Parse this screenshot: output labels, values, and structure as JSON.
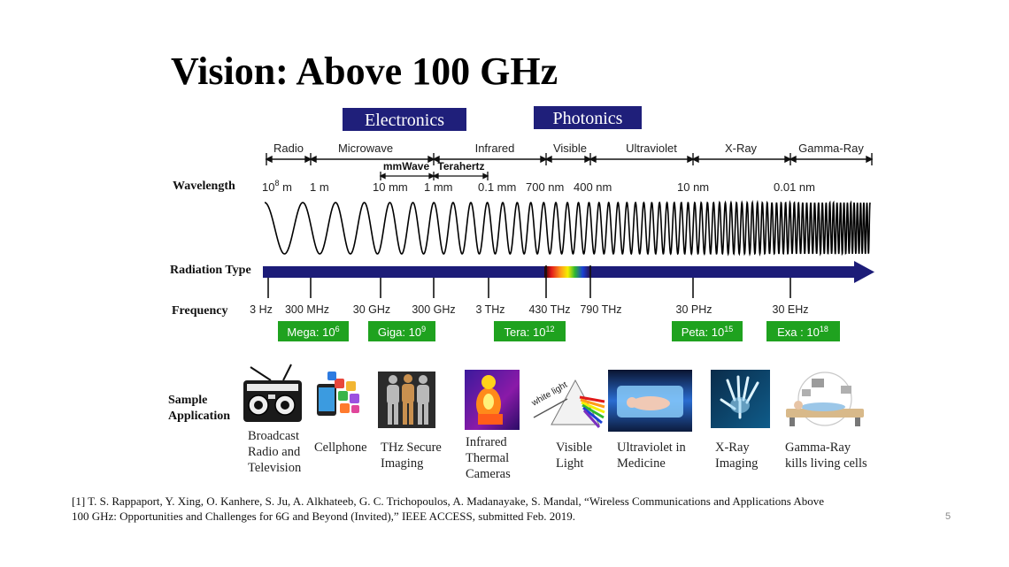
{
  "slide": {
    "title": "Vision: Above 100 GHz",
    "page_number": "5"
  },
  "headers": [
    {
      "label": "Electronics"
    },
    {
      "label": "Photonics"
    }
  ],
  "bands": [
    {
      "label": "Radio"
    },
    {
      "label": "Microwave"
    },
    {
      "label": "Infrared"
    },
    {
      "label": "Visible"
    },
    {
      "label": "Ultraviolet"
    },
    {
      "label": "X-Ray"
    },
    {
      "label": "Gamma-Ray"
    }
  ],
  "sub_bands": [
    {
      "label": "mmWave"
    },
    {
      "label": "Terahertz"
    }
  ],
  "rows": {
    "wavelength": "Wavelength",
    "radiation_type": "Radiation Type",
    "frequency": "Frequency",
    "sample_application_line1": "Sample",
    "sample_application_line2": "Application"
  },
  "wavelengths": [
    {
      "base": "10",
      "sup": "8",
      "unit": " m"
    },
    {
      "base": "1 m",
      "sup": "",
      "unit": ""
    },
    {
      "base": "10 mm",
      "sup": "",
      "unit": ""
    },
    {
      "base": "1 mm",
      "sup": "",
      "unit": ""
    },
    {
      "base": "0.1 mm",
      "sup": "",
      "unit": ""
    },
    {
      "base": "700 nm",
      "sup": "",
      "unit": ""
    },
    {
      "base": "400 nm",
      "sup": "",
      "unit": ""
    },
    {
      "base": "10 nm",
      "sup": "",
      "unit": ""
    },
    {
      "base": "0.01 nm",
      "sup": "",
      "unit": ""
    }
  ],
  "frequencies": [
    {
      "label": "3 Hz"
    },
    {
      "label": "300 MHz"
    },
    {
      "label": "30 GHz"
    },
    {
      "label": "300 GHz"
    },
    {
      "label": "3 THz"
    },
    {
      "label": "430 THz"
    },
    {
      "label": "790 THz"
    },
    {
      "label": "30 PHz"
    },
    {
      "label": "30 EHz"
    }
  ],
  "prefixes": [
    {
      "name": "Mega: 10",
      "exp": "6"
    },
    {
      "name": "Giga: 10",
      "exp": "9"
    },
    {
      "name": "Tera: 10",
      "exp": "12"
    },
    {
      "name": "Peta: 10",
      "exp": "15"
    },
    {
      "name": "Exa : 10",
      "exp": "18"
    }
  ],
  "applications": [
    {
      "lines": [
        "Broadcast",
        "Radio and",
        "Television"
      ],
      "icon": "radio-icon"
    },
    {
      "lines": [
        "Cellphone"
      ],
      "icon": "cellphone-icon"
    },
    {
      "lines": [
        "THz Secure",
        "Imaging"
      ],
      "icon": "thz-scan-icon"
    },
    {
      "lines": [
        "Infrared",
        "Thermal",
        "Cameras"
      ],
      "icon": "thermal-camera-icon"
    },
    {
      "lines": [
        "Visible",
        "Light"
      ],
      "icon": "prism-icon"
    },
    {
      "lines": [
        "Ultraviolet in",
        "Medicine"
      ],
      "icon": "uv-incubator-icon"
    },
    {
      "lines": [
        "X-Ray",
        "Imaging"
      ],
      "icon": "xray-hand-icon"
    },
    {
      "lines": [
        "Gamma-Ray",
        "kills living cells"
      ],
      "icon": "gamma-therapy-icon"
    }
  ],
  "prism_label": "white light",
  "colors": {
    "header_bg": "#1f1f7a",
    "prefix_bg": "#1fa21f",
    "arrow": "#1c1c78"
  },
  "reference": {
    "line1": "[1] T. S. Rappaport, Y. Xing, O. Kanhere, S. Ju, A. Alkhateeb, G. C. Trichopoulos, A. Madanayake, S. Mandal, “Wireless Communications and Applications Above",
    "line2": "100 GHz: Opportunities and Challenges for 6G and Beyond (Invited),”  IEEE ACCESS, submitted Feb. 2019."
  }
}
